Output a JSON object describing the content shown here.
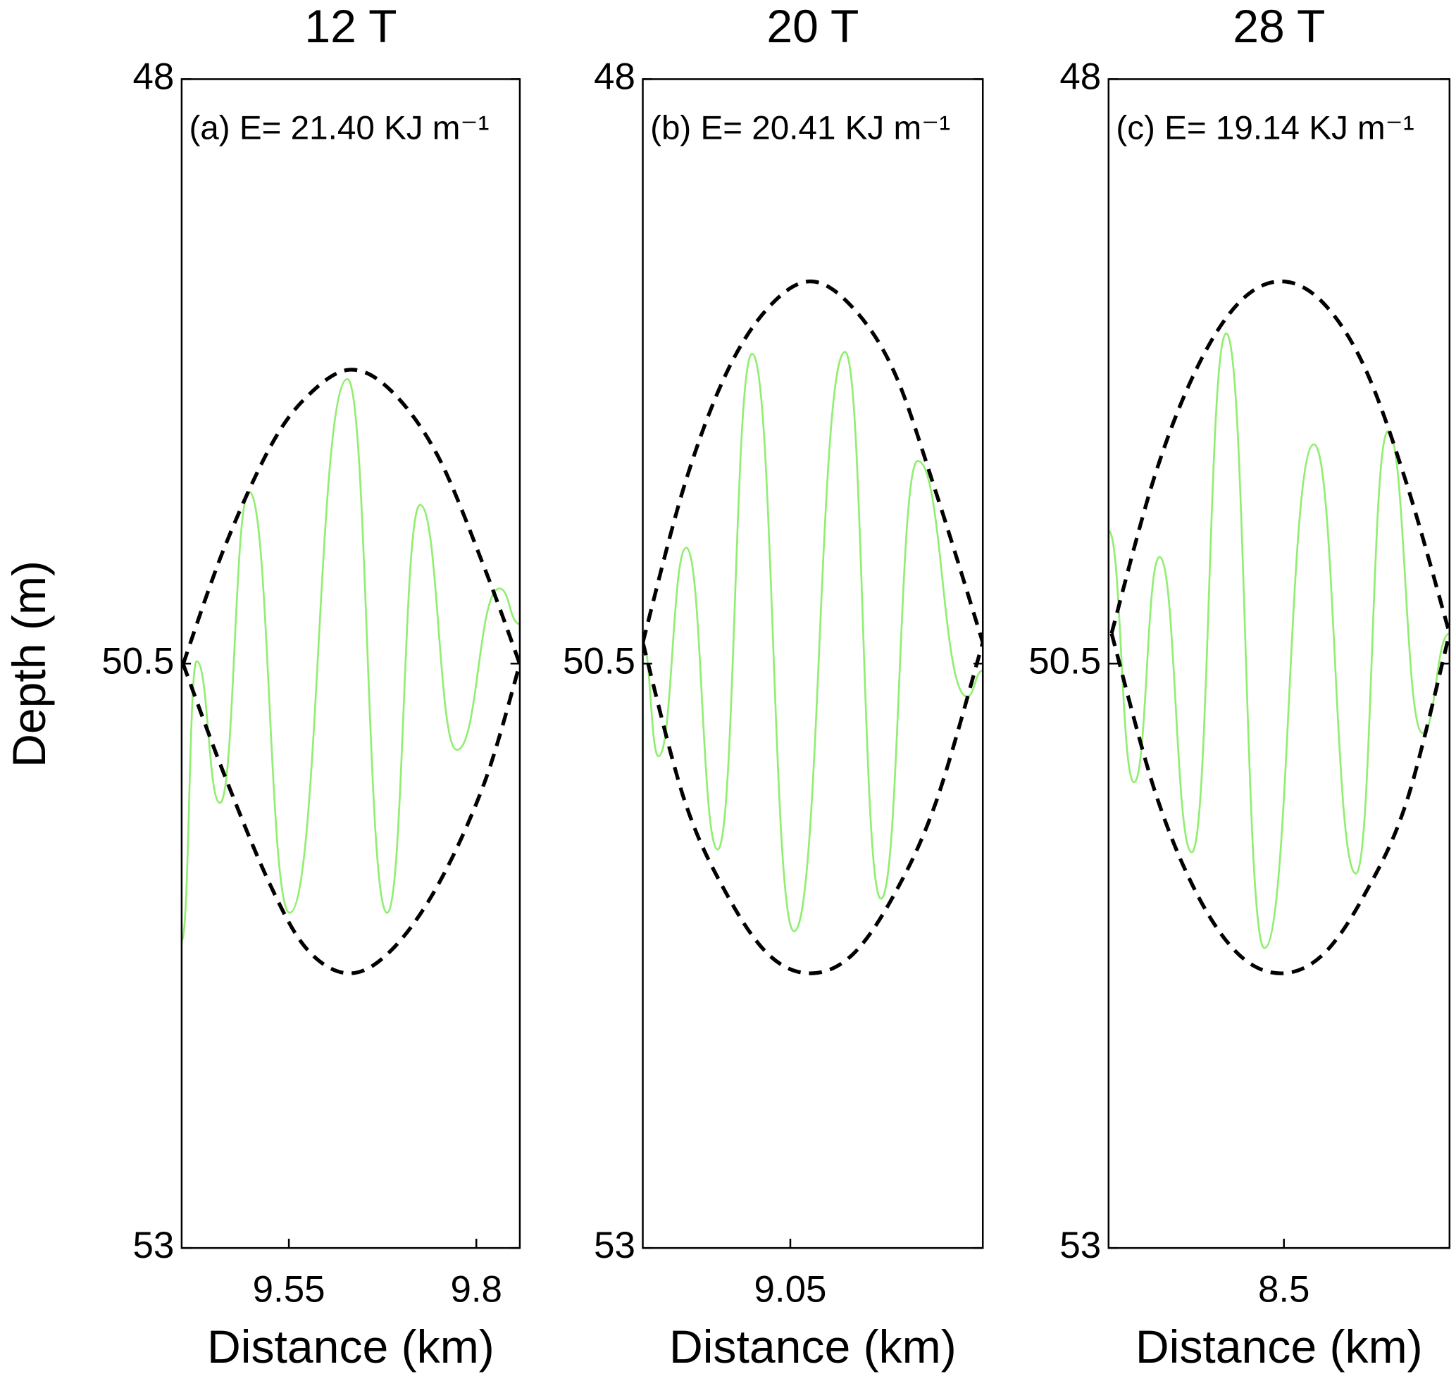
{
  "chart_data": [
    {
      "type": "line",
      "title": "12 T",
      "annotation": "(a) E= 21.40 KJ m⁻¹",
      "ylabel": "Depth (m)",
      "xlabel": "Distance (km)",
      "xlim": [
        9.407,
        9.858
      ],
      "xticks": [
        9.55,
        9.8
      ],
      "ylim": [
        48,
        53
      ],
      "yticks": [
        48,
        50.5,
        53
      ],
      "yreverse": true,
      "series": [
        {
          "color": "#90ee70",
          "linestyle": "solid",
          "x": [
            9.407,
            9.427,
            9.458,
            9.497,
            9.551,
            9.628,
            9.681,
            9.725,
            9.774,
            9.831,
            9.858
          ],
          "values": [
            51.685,
            50.49,
            51.096,
            49.765,
            51.566,
            49.283,
            51.566,
            49.821,
            50.869,
            50.179,
            50.331
          ]
        },
        {
          "color": "#000000",
          "linestyle": "dashed",
          "x": [
            9.409,
            9.463,
            9.525,
            9.575,
            9.631,
            9.687,
            9.749,
            9.811,
            9.858
          ],
          "values": [
            50.502,
            50.012,
            49.574,
            49.355,
            49.243,
            49.335,
            49.614,
            50.092,
            50.502
          ]
        },
        {
          "color": "#000000",
          "linestyle": "dashed",
          "x": [
            9.409,
            9.463,
            9.525,
            9.575,
            9.631,
            9.687,
            9.749,
            9.811,
            9.858
          ],
          "values": [
            50.502,
            50.968,
            51.446,
            51.725,
            51.825,
            51.725,
            51.446,
            51.008,
            50.502
          ]
        }
      ]
    },
    {
      "type": "line",
      "title": "20 T",
      "annotation": "(b) E= 20.41 KJ m⁻¹",
      "xlabel": "Distance (km)",
      "xlim": [
        8.853,
        9.307
      ],
      "xticks": [
        9.05
      ],
      "ylim": [
        48,
        53
      ],
      "yticks": [
        48,
        50.5,
        53
      ],
      "yreverse": true,
      "series": [
        {
          "color": "#90ee70",
          "linestyle": "solid",
          "x": [
            8.853,
            8.874,
            8.911,
            8.953,
            8.999,
            9.055,
            9.123,
            9.171,
            9.22,
            9.286,
            9.307
          ],
          "values": [
            50.41,
            50.896,
            50.004,
            51.295,
            49.175,
            51.645,
            49.167,
            51.506,
            49.633,
            50.641,
            50.53
          ]
        },
        {
          "color": "#000000",
          "linestyle": "dashed",
          "x": [
            8.853,
            8.909,
            8.965,
            9.021,
            9.077,
            9.133,
            9.189,
            9.245,
            9.307
          ],
          "values": [
            50.41,
            49.733,
            49.255,
            48.976,
            48.865,
            48.976,
            49.255,
            49.773,
            50.41
          ]
        },
        {
          "color": "#000000",
          "linestyle": "dashed",
          "x": [
            8.853,
            8.909,
            8.965,
            9.021,
            9.077,
            9.133,
            9.189,
            9.245,
            9.307
          ],
          "values": [
            50.41,
            51.088,
            51.486,
            51.745,
            51.825,
            51.745,
            51.486,
            51.088,
            50.41
          ]
        }
      ]
    },
    {
      "type": "line",
      "title": "28 T",
      "annotation": "(c) E= 19.14 KJ m⁻¹",
      "xlabel": "Distance (km)",
      "xlim": [
        8.266,
        8.721
      ],
      "xticks": [
        8.5
      ],
      "ylim": [
        48,
        53
      ],
      "yticks": [
        48,
        50.5,
        53
      ],
      "yreverse": true,
      "series": [
        {
          "color": "#90ee70",
          "linestyle": "solid",
          "x": [
            8.266,
            8.3,
            8.334,
            8.377,
            8.423,
            8.474,
            8.54,
            8.596,
            8.639,
            8.685,
            8.721
          ],
          "values": [
            49.932,
            51.008,
            50.044,
            51.307,
            49.088,
            51.717,
            49.562,
            51.398,
            49.506,
            50.797,
            50.371
          ]
        },
        {
          "color": "#000000",
          "linestyle": "dashed",
          "x": [
            8.27,
            8.328,
            8.384,
            8.44,
            8.496,
            8.552,
            8.608,
            8.664,
            8.721
          ],
          "values": [
            50.371,
            49.693,
            49.235,
            48.956,
            48.865,
            48.956,
            49.235,
            49.733,
            50.371
          ]
        },
        {
          "color": "#000000",
          "linestyle": "dashed",
          "x": [
            8.27,
            8.328,
            8.384,
            8.44,
            8.496,
            8.552,
            8.608,
            8.664,
            8.721
          ],
          "values": [
            50.371,
            51.048,
            51.486,
            51.745,
            51.825,
            51.745,
            51.486,
            51.088,
            50.371
          ]
        }
      ]
    }
  ]
}
